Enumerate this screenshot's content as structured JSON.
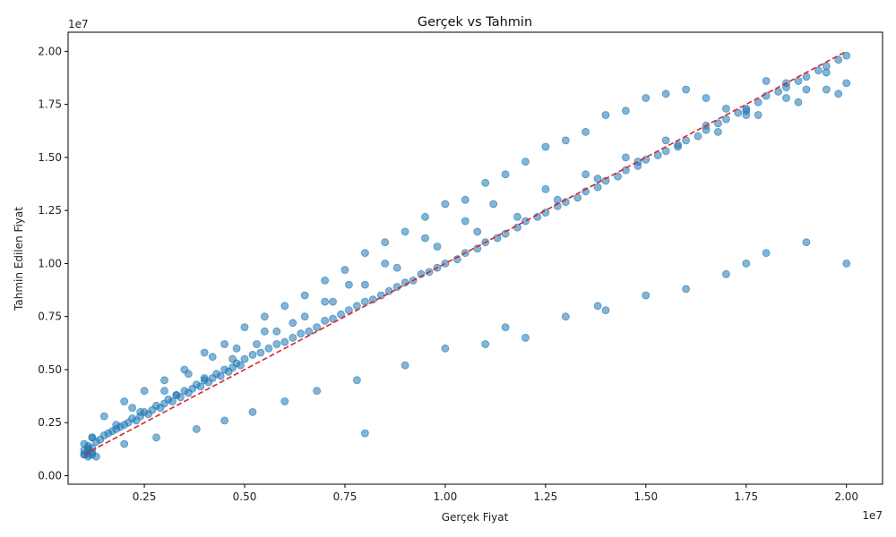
{
  "chart_data": {
    "type": "scatter",
    "title": "Gerçek vs Tahmin",
    "xlabel": "Gerçek Fiyat",
    "ylabel": "Tahmin Edilen Fiyat",
    "x_offset_label": "1e7",
    "y_offset_label": "1e7",
    "xlim": [
      0.06,
      2.09
    ],
    "ylim": [
      -0.04,
      2.09
    ],
    "xticks": [
      0.25,
      0.5,
      0.75,
      1.0,
      1.25,
      1.5,
      1.75,
      2.0
    ],
    "xtick_labels": [
      "0.25",
      "0.50",
      "0.75",
      "1.00",
      "1.25",
      "1.50",
      "1.75",
      "2.00"
    ],
    "yticks": [
      0.0,
      0.25,
      0.5,
      0.75,
      1.0,
      1.25,
      1.5,
      1.75,
      2.0
    ],
    "ytick_labels": [
      "0.00",
      "0.25",
      "0.50",
      "0.75",
      "1.00",
      "1.25",
      "1.50",
      "1.75",
      "2.00"
    ],
    "grid": false,
    "legend": "none",
    "colors": {
      "points": "#1f77b4",
      "reference_line": "#d62728"
    },
    "reference_line": {
      "style": "dashed",
      "x": [
        0.1,
        2.0
      ],
      "y": [
        0.1,
        2.0
      ]
    },
    "series": [
      {
        "x": [
          0.1,
          0.11,
          0.12,
          0.1,
          0.11,
          0.13,
          0.12,
          0.14,
          0.15,
          0.16,
          0.17,
          0.18,
          0.19,
          0.2,
          0.21,
          0.22,
          0.23,
          0.24,
          0.25,
          0.26,
          0.27,
          0.28,
          0.29,
          0.3,
          0.31,
          0.32,
          0.33,
          0.34,
          0.35,
          0.36,
          0.37,
          0.38,
          0.39,
          0.4,
          0.41,
          0.42,
          0.43,
          0.44,
          0.45,
          0.46,
          0.47,
          0.48,
          0.49,
          0.5,
          0.52,
          0.54,
          0.56,
          0.58,
          0.6,
          0.62,
          0.64,
          0.66,
          0.68,
          0.7,
          0.72,
          0.74,
          0.76,
          0.78,
          0.8,
          0.82,
          0.84,
          0.86,
          0.88,
          0.9,
          0.92,
          0.94,
          0.96,
          0.98,
          1.0,
          1.03,
          1.05,
          1.08,
          1.1,
          1.13,
          1.15,
          1.18,
          1.2,
          1.23,
          1.25,
          1.28,
          1.3,
          1.33,
          1.35,
          1.38,
          1.4,
          1.43,
          1.45,
          1.48,
          1.5,
          1.53,
          1.55,
          1.58,
          1.6,
          1.63,
          1.65,
          1.68,
          1.7,
          1.73,
          1.75,
          1.78,
          1.8,
          1.83,
          1.85,
          1.88,
          1.9,
          1.93,
          1.95,
          1.98,
          2.0,
          0.2,
          0.25,
          0.3,
          0.35,
          0.4,
          0.45,
          0.5,
          0.55,
          0.6,
          0.65,
          0.7,
          0.75,
          0.8,
          0.85,
          0.9,
          0.95,
          1.0,
          1.05,
          1.1,
          1.15,
          1.2,
          1.25,
          1.3,
          1.35,
          1.4,
          1.45,
          1.5,
          1.55,
          1.6,
          1.65,
          1.7,
          1.75,
          1.8,
          1.85,
          1.9,
          1.95,
          2.0,
          0.2,
          0.28,
          0.38,
          0.45,
          0.52,
          0.6,
          0.68,
          0.78,
          0.8,
          0.9,
          1.0,
          1.1,
          1.15,
          1.2,
          1.3,
          1.38,
          1.4,
          1.5,
          1.6,
          1.7,
          1.75,
          1.8,
          1.9,
          2.0,
          0.15,
          0.22,
          0.3,
          0.36,
          0.42,
          0.48,
          0.55,
          0.62,
          0.7,
          0.76,
          0.85,
          0.95,
          1.05,
          1.12,
          1.25,
          1.35,
          1.45,
          1.55,
          1.65,
          1.75,
          1.85,
          1.95,
          0.12,
          0.18,
          0.24,
          0.33,
          0.4,
          0.47,
          0.53,
          0.58,
          0.65,
          0.72,
          0.8,
          0.88,
          0.98,
          1.08,
          1.18,
          1.28,
          1.38,
          1.48,
          1.58,
          1.68,
          1.78,
          1.88,
          1.98,
          0.1,
          0.11,
          0.12,
          0.11,
          0.1,
          0.12,
          0.11,
          0.13
        ],
        "y": [
          0.1,
          0.12,
          0.13,
          0.15,
          0.14,
          0.16,
          0.18,
          0.17,
          0.19,
          0.2,
          0.21,
          0.22,
          0.23,
          0.24,
          0.25,
          0.27,
          0.26,
          0.28,
          0.3,
          0.29,
          0.31,
          0.33,
          0.32,
          0.34,
          0.36,
          0.35,
          0.38,
          0.37,
          0.4,
          0.39,
          0.41,
          0.43,
          0.42,
          0.45,
          0.44,
          0.46,
          0.48,
          0.47,
          0.5,
          0.49,
          0.51,
          0.53,
          0.52,
          0.55,
          0.57,
          0.58,
          0.6,
          0.62,
          0.63,
          0.65,
          0.67,
          0.68,
          0.7,
          0.73,
          0.74,
          0.76,
          0.78,
          0.8,
          0.82,
          0.83,
          0.85,
          0.87,
          0.89,
          0.91,
          0.92,
          0.95,
          0.96,
          0.98,
          1.0,
          1.02,
          1.05,
          1.07,
          1.1,
          1.12,
          1.14,
          1.17,
          1.2,
          1.22,
          1.24,
          1.27,
          1.29,
          1.31,
          1.34,
          1.36,
          1.39,
          1.41,
          1.44,
          1.46,
          1.49,
          1.51,
          1.53,
          1.56,
          1.58,
          1.6,
          1.63,
          1.66,
          1.68,
          1.71,
          1.73,
          1.76,
          1.79,
          1.81,
          1.83,
          1.86,
          1.88,
          1.91,
          1.93,
          1.96,
          1.98,
          0.35,
          0.4,
          0.45,
          0.5,
          0.58,
          0.62,
          0.7,
          0.75,
          0.8,
          0.85,
          0.92,
          0.97,
          1.05,
          1.1,
          1.15,
          1.22,
          1.28,
          1.3,
          1.38,
          1.42,
          1.48,
          1.55,
          1.58,
          1.62,
          1.7,
          1.72,
          1.78,
          1.8,
          1.82,
          1.78,
          1.73,
          1.7,
          1.86,
          1.85,
          1.82,
          1.9,
          1.85,
          0.15,
          0.18,
          0.22,
          0.26,
          0.3,
          0.35,
          0.4,
          0.45,
          0.2,
          0.52,
          0.6,
          0.62,
          0.7,
          0.65,
          0.75,
          0.8,
          0.78,
          0.85,
          0.88,
          0.95,
          1.0,
          1.05,
          1.1,
          1.0,
          0.28,
          0.32,
          0.4,
          0.48,
          0.56,
          0.6,
          0.68,
          0.72,
          0.82,
          0.9,
          1.0,
          1.12,
          1.2,
          1.28,
          1.35,
          1.42,
          1.5,
          1.58,
          1.65,
          1.72,
          1.78,
          1.82,
          0.18,
          0.24,
          0.3,
          0.38,
          0.46,
          0.55,
          0.62,
          0.68,
          0.75,
          0.82,
          0.9,
          0.98,
          1.08,
          1.15,
          1.22,
          1.3,
          1.4,
          1.48,
          1.55,
          1.62,
          1.7,
          1.76,
          1.8,
          0.1,
          0.09,
          0.11,
          0.1,
          0.12,
          0.1,
          0.13,
          0.09
        ]
      }
    ]
  }
}
